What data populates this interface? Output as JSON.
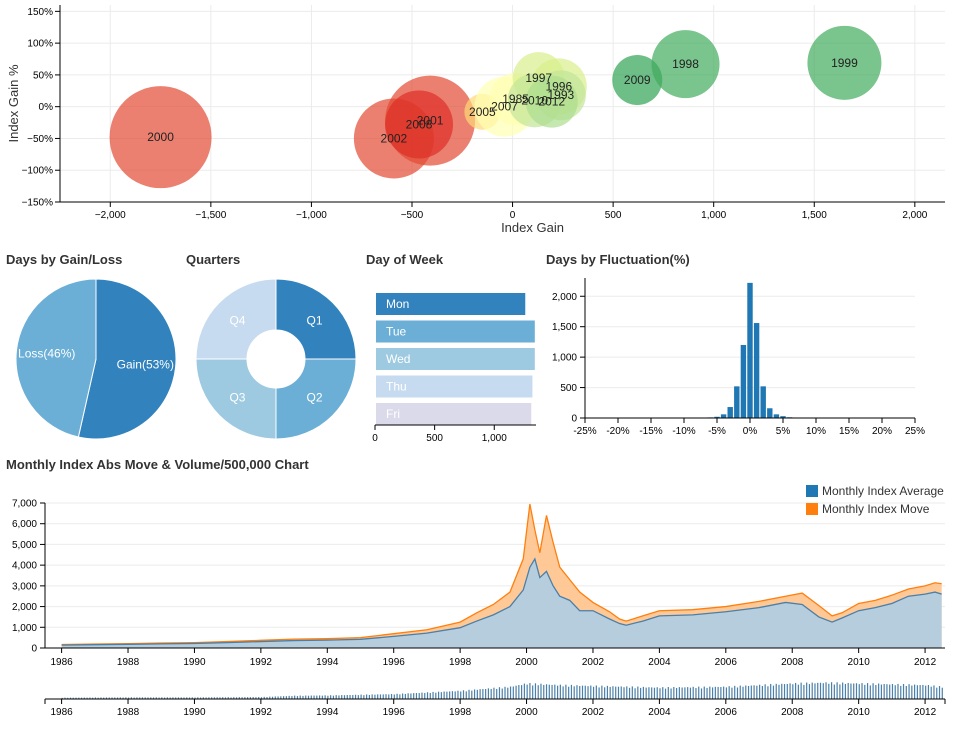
{
  "titles": {
    "gain_loss": "Days by Gain/Loss",
    "quarters": "Quarters",
    "day_of_week": "Day of Week",
    "fluctuation": "Days by Fluctuation(%)",
    "monthly": "Monthly Index Abs Move & Volume/500,000 Chart"
  },
  "colors": {
    "red": "#e34a33",
    "green": "#31a354",
    "yellow": "#ffffb2",
    "blue_dark": "#3182bd",
    "blue_mid": "#6baed6",
    "blue_light": "#9ecae1",
    "blue_pale": "#c6dbef",
    "lavender": "#dadaeb",
    "orange": "#ff7f0e",
    "steel": "#1f77b4"
  },
  "chart_data": [
    {
      "type": "scatter",
      "xlabel": "Index Gain",
      "ylabel": "Index Gain %",
      "xlim": [
        -2250,
        2150
      ],
      "ylim": [
        -150,
        160
      ],
      "xticks": [
        -2000,
        -1500,
        -1000,
        -500,
        0,
        500,
        1000,
        1500,
        2000
      ],
      "xtick_labels": [
        "−2,000",
        "−1,500",
        "−1,000",
        "−500",
        "0",
        "500",
        "1,000",
        "1,500",
        "2,000"
      ],
      "yticks": [
        -150,
        -100,
        -50,
        0,
        50,
        100,
        150
      ],
      "ytick_labels": [
        "−150%",
        "−100%",
        "−50%",
        "0%",
        "50%",
        "100%",
        "150%"
      ],
      "grid": true,
      "points": [
        {
          "label": "2000",
          "x": -1750,
          "y": -48,
          "r": 51,
          "color": "#e34a33"
        },
        {
          "label": "2002",
          "x": -590,
          "y": -50,
          "r": 40,
          "color": "#e34a33"
        },
        {
          "label": "2001",
          "x": -410,
          "y": -22,
          "r": 45,
          "color": "#e34a33"
        },
        {
          "label": "2008",
          "x": -465,
          "y": -28,
          "r": 34,
          "color": "#de2d26"
        },
        {
          "label": "2005",
          "x": -150,
          "y": -8,
          "r": 18,
          "color": "#fed976"
        },
        {
          "label": "2007",
          "x": -40,
          "y": 0,
          "r": 30,
          "color": "#ffffb2"
        },
        {
          "label": "1985",
          "x": 15,
          "y": 12,
          "r": 26,
          "color": "#ffffb2"
        },
        {
          "label": "1997",
          "x": 130,
          "y": 45,
          "r": 26,
          "color": "#d9ef8b"
        },
        {
          "label": "1996",
          "x": 230,
          "y": 32,
          "r": 28,
          "color": "#d9ef8b"
        },
        {
          "label": "1993",
          "x": 240,
          "y": 18,
          "r": 25,
          "color": "#c2e699"
        },
        {
          "label": "2010",
          "x": 110,
          "y": 10,
          "r": 27,
          "color": "#c2e699"
        },
        {
          "label": "2012",
          "x": 195,
          "y": 8,
          "r": 26,
          "color": "#addd8e"
        },
        {
          "label": "2009",
          "x": 620,
          "y": 42,
          "r": 25,
          "color": "#31a354"
        },
        {
          "label": "1998",
          "x": 860,
          "y": 67,
          "r": 34,
          "color": "#41ab5d"
        },
        {
          "label": "1999",
          "x": 1650,
          "y": 69,
          "r": 37,
          "color": "#41ab5d"
        }
      ]
    },
    {
      "type": "pie",
      "labels": [
        "Gain(53%)",
        "Loss(46%)"
      ],
      "values": [
        53,
        46
      ],
      "colors": [
        "#3182bd",
        "#6baed6"
      ]
    },
    {
      "type": "pie",
      "labels": [
        "Q1",
        "Q2",
        "Q3",
        "Q4"
      ],
      "values": [
        25,
        25,
        25,
        25
      ],
      "colors": [
        "#3182bd",
        "#6baed6",
        "#9ecae1",
        "#c6dbef"
      ]
    },
    {
      "type": "bar",
      "orientation": "horizontal",
      "categories": [
        "Mon",
        "Tue",
        "Wed",
        "Thu",
        "Fri"
      ],
      "values": [
        1260,
        1340,
        1340,
        1320,
        1310
      ],
      "colors": [
        "#3182bd",
        "#6baed6",
        "#9ecae1",
        "#c6dbef",
        "#dadaeb"
      ],
      "xlim": [
        0,
        1350
      ],
      "xticks": [
        0,
        500,
        1000
      ],
      "xtick_labels": [
        "0",
        "500",
        "1,000"
      ]
    },
    {
      "type": "bar",
      "xlim": [
        -25,
        25
      ],
      "ylim": [
        0,
        2300
      ],
      "xticks": [
        -25,
        -20,
        -15,
        -10,
        -5,
        0,
        5,
        10,
        15,
        20,
        25
      ],
      "xtick_labels": [
        "-25%",
        "-20%",
        "-15%",
        "-10%",
        "-5%",
        "0%",
        "5%",
        "10%",
        "15%",
        "20%",
        "25%"
      ],
      "yticks": [
        0,
        500,
        1000,
        1500,
        2000
      ],
      "ytick_labels": [
        "0",
        "500",
        "1,000",
        "1,500",
        "2,000"
      ],
      "x": [
        -7,
        -6,
        -5,
        -4,
        -3,
        -2,
        -1,
        0,
        1,
        2,
        3,
        4,
        5,
        6,
        7
      ],
      "values": [
        5,
        10,
        20,
        60,
        180,
        520,
        1200,
        2220,
        1560,
        520,
        160,
        60,
        30,
        12,
        5
      ]
    },
    {
      "type": "area",
      "xlim": [
        1985.5,
        2012.6
      ],
      "ylim": [
        0,
        7000
      ],
      "xticks": [
        1986,
        1988,
        1990,
        1992,
        1994,
        1996,
        1998,
        2000,
        2002,
        2004,
        2006,
        2008,
        2010,
        2012
      ],
      "yticks": [
        0,
        1000,
        2000,
        3000,
        4000,
        5000,
        6000,
        7000
      ],
      "ytick_labels": [
        "0",
        "1,000",
        "2,000",
        "3,000",
        "4,000",
        "5,000",
        "6,000",
        "7,000"
      ],
      "legend": {
        "position": "top-right"
      },
      "series": [
        {
          "name": "Monthly Index Average",
          "color": "#1f77b4",
          "x": [
            1986,
            1987,
            1988,
            1989,
            1990,
            1991,
            1992,
            1993,
            1994,
            1995,
            1996,
            1997,
            1998,
            1998.5,
            1999,
            1999.5,
            1999.9,
            2000.1,
            2000.25,
            2000.4,
            2000.6,
            2000.8,
            2001,
            2001.3,
            2001.6,
            2002,
            2002.5,
            2002.8,
            2003,
            2003.5,
            2004,
            2005,
            2006,
            2007,
            2007.8,
            2008.3,
            2008.8,
            2009.2,
            2009.5,
            2010,
            2010.5,
            2011,
            2011.5,
            2012,
            2012.3,
            2012.5
          ],
          "values": [
            140,
            160,
            175,
            200,
            220,
            260,
            310,
            360,
            380,
            420,
            560,
            720,
            980,
            1300,
            1600,
            2000,
            2800,
            3900,
            4300,
            3400,
            3700,
            3000,
            2500,
            2300,
            1800,
            1800,
            1400,
            1180,
            1100,
            1300,
            1550,
            1600,
            1750,
            1950,
            2200,
            2100,
            1500,
            1250,
            1450,
            1800,
            1950,
            2150,
            2500,
            2600,
            2700,
            2600
          ]
        },
        {
          "name": "Monthly Index Move",
          "color": "#ff7f0e",
          "x": [
            1986,
            1987,
            1988,
            1989,
            1990,
            1991,
            1992,
            1993,
            1994,
            1995,
            1996,
            1997,
            1998,
            1998.5,
            1999,
            1999.5,
            1999.9,
            2000.1,
            2000.25,
            2000.4,
            2000.6,
            2000.8,
            2001,
            2001.3,
            2001.6,
            2002,
            2002.5,
            2002.8,
            2003,
            2003.5,
            2004,
            2005,
            2006,
            2007,
            2007.8,
            2008.3,
            2008.8,
            2009.2,
            2009.5,
            2010,
            2010.5,
            2011,
            2011.5,
            2012,
            2012.3,
            2012.5
          ],
          "values": [
            170,
            190,
            210,
            240,
            260,
            310,
            370,
            430,
            450,
            500,
            690,
            880,
            1250,
            1700,
            2100,
            2700,
            4300,
            6950,
            5700,
            4600,
            6400,
            5100,
            3900,
            3300,
            2700,
            2200,
            1750,
            1400,
            1300,
            1550,
            1800,
            1850,
            2000,
            2250,
            2500,
            2650,
            2050,
            1550,
            1700,
            2150,
            2300,
            2550,
            2850,
            3000,
            3150,
            3100
          ]
        }
      ]
    },
    {
      "type": "bar",
      "role": "volume-brush",
      "xlim": [
        1985.5,
        2012.6
      ],
      "xticks": [
        1986,
        1988,
        1990,
        1992,
        1994,
        1996,
        1998,
        2000,
        2002,
        2004,
        2006,
        2008,
        2010,
        2012
      ],
      "x": [
        1986,
        1988,
        1990,
        1992,
        1993,
        1994,
        1996,
        1998,
        1999.5,
        2000,
        2001,
        2002,
        2004,
        2006,
        2008,
        2009,
        2010,
        2012,
        2012.5
      ],
      "values": [
        0.08,
        0.1,
        0.1,
        0.12,
        0.2,
        0.22,
        0.3,
        0.5,
        0.75,
        0.95,
        0.85,
        0.8,
        0.7,
        0.75,
        0.95,
        1.0,
        0.95,
        0.85,
        0.75
      ]
    }
  ]
}
